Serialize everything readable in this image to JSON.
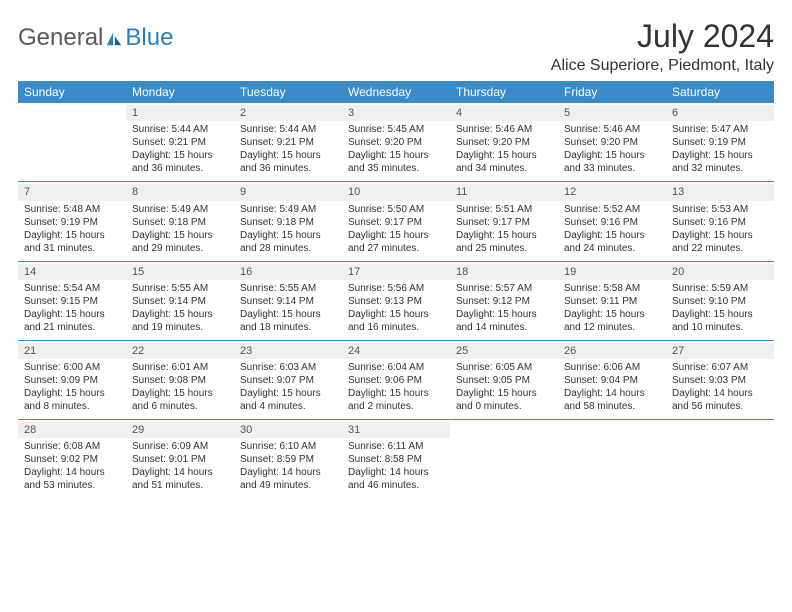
{
  "logo": {
    "part1": "General",
    "part2": "Blue"
  },
  "title": "July 2024",
  "location": "Alice Superiore, Piedmont, Italy",
  "colors": {
    "header_bg": "#3b8bc8",
    "header_text": "#ffffff",
    "daynum_bg": "#f0f0f0",
    "body_text": "#333333",
    "logo_gray": "#5a5a5a",
    "logo_blue": "#2a7fbf",
    "row_border": "#3b8bc8"
  },
  "weekdays": [
    "Sunday",
    "Monday",
    "Tuesday",
    "Wednesday",
    "Thursday",
    "Friday",
    "Saturday"
  ],
  "weeks": [
    [
      null,
      {
        "n": "1",
        "sr": "5:44 AM",
        "ss": "9:21 PM",
        "dl": "15 hours and 36 minutes."
      },
      {
        "n": "2",
        "sr": "5:44 AM",
        "ss": "9:21 PM",
        "dl": "15 hours and 36 minutes."
      },
      {
        "n": "3",
        "sr": "5:45 AM",
        "ss": "9:20 PM",
        "dl": "15 hours and 35 minutes."
      },
      {
        "n": "4",
        "sr": "5:46 AM",
        "ss": "9:20 PM",
        "dl": "15 hours and 34 minutes."
      },
      {
        "n": "5",
        "sr": "5:46 AM",
        "ss": "9:20 PM",
        "dl": "15 hours and 33 minutes."
      },
      {
        "n": "6",
        "sr": "5:47 AM",
        "ss": "9:19 PM",
        "dl": "15 hours and 32 minutes."
      }
    ],
    [
      {
        "n": "7",
        "sr": "5:48 AM",
        "ss": "9:19 PM",
        "dl": "15 hours and 31 minutes."
      },
      {
        "n": "8",
        "sr": "5:49 AM",
        "ss": "9:18 PM",
        "dl": "15 hours and 29 minutes."
      },
      {
        "n": "9",
        "sr": "5:49 AM",
        "ss": "9:18 PM",
        "dl": "15 hours and 28 minutes."
      },
      {
        "n": "10",
        "sr": "5:50 AM",
        "ss": "9:17 PM",
        "dl": "15 hours and 27 minutes."
      },
      {
        "n": "11",
        "sr": "5:51 AM",
        "ss": "9:17 PM",
        "dl": "15 hours and 25 minutes."
      },
      {
        "n": "12",
        "sr": "5:52 AM",
        "ss": "9:16 PM",
        "dl": "15 hours and 24 minutes."
      },
      {
        "n": "13",
        "sr": "5:53 AM",
        "ss": "9:16 PM",
        "dl": "15 hours and 22 minutes."
      }
    ],
    [
      {
        "n": "14",
        "sr": "5:54 AM",
        "ss": "9:15 PM",
        "dl": "15 hours and 21 minutes."
      },
      {
        "n": "15",
        "sr": "5:55 AM",
        "ss": "9:14 PM",
        "dl": "15 hours and 19 minutes."
      },
      {
        "n": "16",
        "sr": "5:55 AM",
        "ss": "9:14 PM",
        "dl": "15 hours and 18 minutes."
      },
      {
        "n": "17",
        "sr": "5:56 AM",
        "ss": "9:13 PM",
        "dl": "15 hours and 16 minutes."
      },
      {
        "n": "18",
        "sr": "5:57 AM",
        "ss": "9:12 PM",
        "dl": "15 hours and 14 minutes."
      },
      {
        "n": "19",
        "sr": "5:58 AM",
        "ss": "9:11 PM",
        "dl": "15 hours and 12 minutes."
      },
      {
        "n": "20",
        "sr": "5:59 AM",
        "ss": "9:10 PM",
        "dl": "15 hours and 10 minutes."
      }
    ],
    [
      {
        "n": "21",
        "sr": "6:00 AM",
        "ss": "9:09 PM",
        "dl": "15 hours and 8 minutes."
      },
      {
        "n": "22",
        "sr": "6:01 AM",
        "ss": "9:08 PM",
        "dl": "15 hours and 6 minutes."
      },
      {
        "n": "23",
        "sr": "6:03 AM",
        "ss": "9:07 PM",
        "dl": "15 hours and 4 minutes."
      },
      {
        "n": "24",
        "sr": "6:04 AM",
        "ss": "9:06 PM",
        "dl": "15 hours and 2 minutes."
      },
      {
        "n": "25",
        "sr": "6:05 AM",
        "ss": "9:05 PM",
        "dl": "15 hours and 0 minutes."
      },
      {
        "n": "26",
        "sr": "6:06 AM",
        "ss": "9:04 PM",
        "dl": "14 hours and 58 minutes."
      },
      {
        "n": "27",
        "sr": "6:07 AM",
        "ss": "9:03 PM",
        "dl": "14 hours and 56 minutes."
      }
    ],
    [
      {
        "n": "28",
        "sr": "6:08 AM",
        "ss": "9:02 PM",
        "dl": "14 hours and 53 minutes."
      },
      {
        "n": "29",
        "sr": "6:09 AM",
        "ss": "9:01 PM",
        "dl": "14 hours and 51 minutes."
      },
      {
        "n": "30",
        "sr": "6:10 AM",
        "ss": "8:59 PM",
        "dl": "14 hours and 49 minutes."
      },
      {
        "n": "31",
        "sr": "6:11 AM",
        "ss": "8:58 PM",
        "dl": "14 hours and 46 minutes."
      },
      null,
      null,
      null
    ]
  ],
  "labels": {
    "sunrise": "Sunrise:",
    "sunset": "Sunset:",
    "daylight": "Daylight:"
  }
}
